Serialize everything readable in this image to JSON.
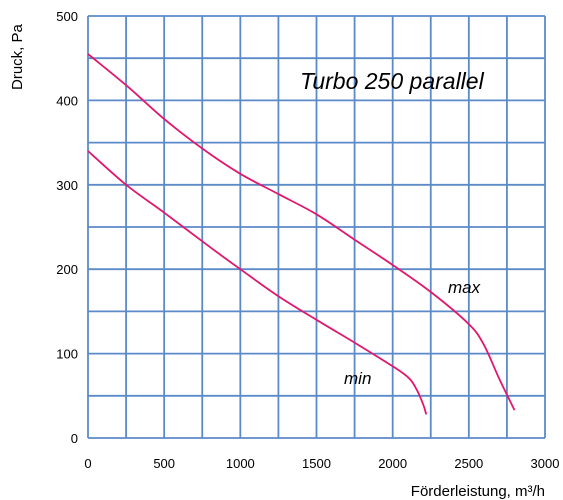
{
  "chart_data": {
    "type": "line",
    "title": "Turbo 250 parallel",
    "xlabel": "Förderleistung, m³/h",
    "ylabel": "Druck, Pa",
    "xlim": [
      0,
      3000
    ],
    "ylim": [
      0,
      500
    ],
    "x_ticks": [
      "0",
      "500",
      "1000",
      "1500",
      "2000",
      "2500",
      "3000"
    ],
    "y_ticks": [
      "0",
      "100",
      "200",
      "300",
      "400",
      "500"
    ],
    "grid": true,
    "grid_color": "#5b8ac9",
    "series": [
      {
        "name": "max",
        "color": "#e0186e",
        "x": [
          0,
          250,
          500,
          750,
          1000,
          1250,
          1500,
          1750,
          2000,
          2250,
          2500,
          2600,
          2700,
          2800
        ],
        "y": [
          455,
          418,
          378,
          343,
          313,
          289,
          265,
          235,
          205,
          173,
          135,
          110,
          70,
          33
        ]
      },
      {
        "name": "min",
        "color": "#e0186e",
        "x": [
          0,
          250,
          500,
          750,
          1000,
          1250,
          1500,
          1750,
          2000,
          2100,
          2150,
          2200,
          2220
        ],
        "y": [
          340,
          300,
          267,
          233,
          200,
          168,
          140,
          113,
          85,
          72,
          60,
          40,
          28
        ]
      }
    ]
  }
}
